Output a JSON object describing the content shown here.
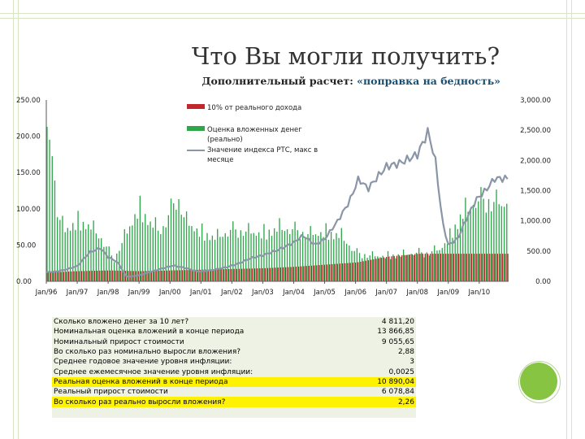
{
  "slide": {
    "title": "Что Вы могли получить?",
    "subtitle_prefix": "Дополнительный расчет:",
    "subtitle_highlight": "«поправка на бедность»"
  },
  "colors": {
    "red_bar": "#c0282d",
    "green_bar": "#2ea64a",
    "line": "#8a95a8",
    "highlight": "#fff200",
    "dot": "#86c442"
  },
  "chart_data": {
    "type": "bar",
    "x_ticks": [
      "Jan/96",
      "Jan/97",
      "Jan/98",
      "Jan/99",
      "Jan/00",
      "Jan/01",
      "Jan/02",
      "Jan/03",
      "Jan/04",
      "Jan/05",
      "Jan/06",
      "Jan/07",
      "Jan/08",
      "Jan/09",
      "Jan/10"
    ],
    "y_left": {
      "ticks": [
        "0.00",
        "50.00",
        "100.00",
        "150.00",
        "200.00",
        "250.00"
      ],
      "range": [
        0,
        250
      ]
    },
    "y_right": {
      "ticks": [
        "0.00",
        "500.00",
        "1,000.00",
        "1,500.00",
        "2,000.00",
        "2,500.00",
        "3,000.00"
      ],
      "range": [
        0,
        3000
      ]
    },
    "legend_position": "top-center",
    "series": [
      {
        "name": "10% от реального дохода",
        "kind": "bar",
        "axis": "left",
        "anchors": [
          [
            1996,
            12
          ],
          [
            1997,
            14
          ],
          [
            1998,
            15
          ],
          [
            1999,
            14
          ],
          [
            2000,
            15
          ],
          [
            2001,
            16
          ],
          [
            2002,
            17
          ],
          [
            2003,
            18
          ],
          [
            2004,
            20
          ],
          [
            2005,
            23
          ],
          [
            2006,
            26
          ],
          [
            2007,
            34
          ],
          [
            2008,
            38
          ],
          [
            2009,
            38
          ],
          [
            2010,
            38
          ],
          [
            2010.5,
            38
          ]
        ]
      },
      {
        "name": "Оценка вложенных денег (реально)",
        "kind": "bar",
        "axis": "left",
        "anchors": [
          [
            1996,
            180
          ],
          [
            1996.2,
            205
          ],
          [
            1996.35,
            100
          ],
          [
            1996.6,
            72
          ],
          [
            1997,
            85
          ],
          [
            1997.4,
            80
          ],
          [
            1997.8,
            60
          ],
          [
            1998.2,
            30
          ],
          [
            1998.6,
            68
          ],
          [
            1999,
            105
          ],
          [
            1999.35,
            85
          ],
          [
            1999.7,
            70
          ],
          [
            2000,
            95
          ],
          [
            2000.25,
            120
          ],
          [
            2000.5,
            85
          ],
          [
            2001,
            70
          ],
          [
            2001.5,
            62
          ],
          [
            2002,
            72
          ],
          [
            2002.5,
            70
          ],
          [
            2003,
            68
          ],
          [
            2003.5,
            76
          ],
          [
            2004,
            72
          ],
          [
            2004.5,
            66
          ],
          [
            2005,
            70
          ],
          [
            2005.5,
            66
          ],
          [
            2006,
            40
          ],
          [
            2006.5,
            36
          ],
          [
            2007,
            36
          ],
          [
            2007.5,
            38
          ],
          [
            2008,
            40
          ],
          [
            2008.3,
            40
          ],
          [
            2008.7,
            45
          ],
          [
            2009,
            60
          ],
          [
            2009.4,
            95
          ],
          [
            2009.8,
            110
          ],
          [
            2010.2,
            115
          ],
          [
            2010.5,
            110
          ]
        ]
      },
      {
        "name": "Значение индекса РТС, макс в месяце",
        "kind": "line",
        "axis": "right",
        "anchors": [
          [
            1996,
            150
          ],
          [
            1996.3,
            160
          ],
          [
            1996.6,
            190
          ],
          [
            1997,
            250
          ],
          [
            1997.4,
            480
          ],
          [
            1997.75,
            550
          ],
          [
            1998,
            400
          ],
          [
            1998.3,
            320
          ],
          [
            1998.6,
            70
          ],
          [
            1999,
            100
          ],
          [
            1999.4,
            160
          ],
          [
            1999.8,
            220
          ],
          [
            2000.1,
            260
          ],
          [
            2000.5,
            220
          ],
          [
            2000.9,
            160
          ],
          [
            2001.3,
            180
          ],
          [
            2001.8,
            230
          ],
          [
            2002.2,
            290
          ],
          [
            2002.6,
            380
          ],
          [
            2003,
            430
          ],
          [
            2003.5,
            520
          ],
          [
            2004,
            640
          ],
          [
            2004.3,
            760
          ],
          [
            2004.7,
            600
          ],
          [
            2005,
            700
          ],
          [
            2005.4,
            980
          ],
          [
            2005.8,
            1320
          ],
          [
            2006.1,
            1700
          ],
          [
            2006.4,
            1530
          ],
          [
            2006.7,
            1720
          ],
          [
            2007,
            1900
          ],
          [
            2007.4,
            1950
          ],
          [
            2007.7,
            2020
          ],
          [
            2008,
            2100
          ],
          [
            2008.35,
            2480
          ],
          [
            2008.6,
            1950
          ],
          [
            2008.8,
            1000
          ],
          [
            2009,
            600
          ],
          [
            2009.3,
            700
          ],
          [
            2009.6,
            1050
          ],
          [
            2009.9,
            1350
          ],
          [
            2010.2,
            1500
          ],
          [
            2010.5,
            1700
          ]
        ]
      }
    ]
  },
  "stats_table": [
    {
      "label": "Сколько вложено денег за 10 лет?",
      "value": "4 811,20",
      "highlight": false
    },
    {
      "label": "Номинальная оценка вложений в конце периода",
      "value": "13 866,85",
      "highlight": false
    },
    {
      "label": "Номинальный прирост стоимости",
      "value": "9 055,65",
      "highlight": false
    },
    {
      "label": "Во сколько раз номинально выросли вложения?",
      "value": "2,88",
      "highlight": false
    },
    {
      "label": "Среднее годовое значение уровня инфляции:",
      "value": "3",
      "highlight": false
    },
    {
      "label": "Среднее ежемесячное значение уровня инфляции:",
      "value": "0,0025",
      "highlight": false
    },
    {
      "label": "Реальная оценка вложений в конце периода",
      "value": "10 890,04",
      "highlight": true
    },
    {
      "label": "Реальный прирост стоимости",
      "value": "6 078,84",
      "highlight": false
    },
    {
      "label": "Во сколько раз реально выросли вложения?",
      "value": "2,26",
      "highlight": true
    }
  ]
}
